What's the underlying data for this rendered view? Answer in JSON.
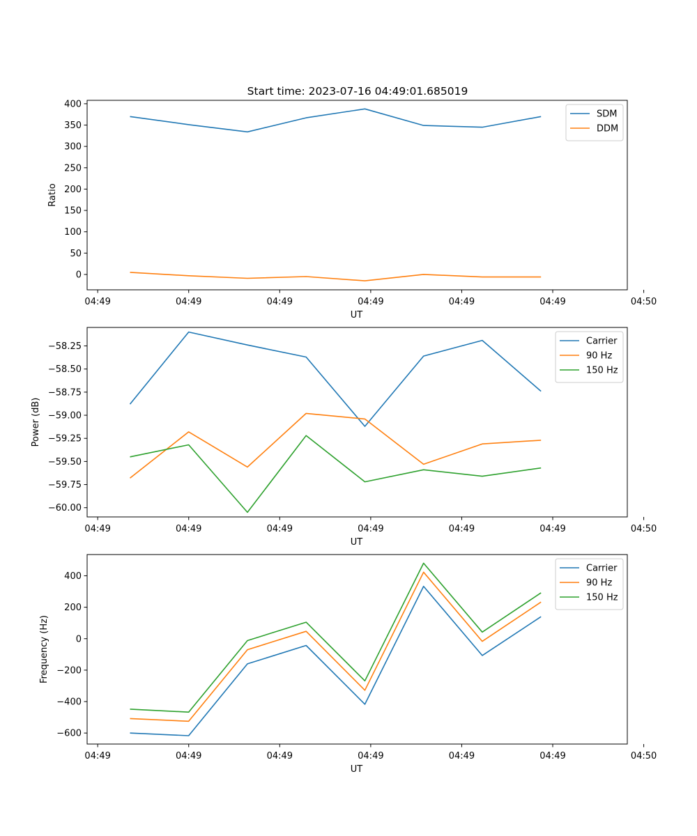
{
  "figure": {
    "title": "Start time: 2023-07-16 04:49:01.685019"
  },
  "chart_data": [
    {
      "type": "line",
      "title": "Start time: 2023-07-16 04:49:01.685019",
      "xlabel": "UT",
      "ylabel": "Ratio",
      "x_tick_labels": [
        "04:49",
        "04:49",
        "04:49",
        "04:49",
        "04:49",
        "04:49",
        "04:50"
      ],
      "y_ticks": [
        0,
        50,
        100,
        150,
        200,
        250,
        300,
        350,
        400
      ],
      "y_tick_labels": [
        "0",
        "50",
        "100",
        "150",
        "200",
        "250",
        "300",
        "350",
        "400"
      ],
      "ylim": [
        -36,
        408
      ],
      "x": [
        1,
        2,
        3,
        4,
        5,
        6,
        7,
        8
      ],
      "xlim": [
        0.27,
        9.47
      ],
      "x_tick_positions": [
        0.45,
        2.0,
        3.55,
        5.1,
        6.65,
        8.2,
        9.75
      ],
      "legend_position": "top-right",
      "series": [
        {
          "name": "SDM",
          "color": "#1f77b4",
          "values": [
            370,
            351,
            334,
            367,
            388,
            349,
            345,
            370
          ]
        },
        {
          "name": "DDM",
          "color": "#ff7f0e",
          "values": [
            5,
            -3,
            -9,
            -5,
            -15,
            0,
            -6,
            -6
          ]
        }
      ]
    },
    {
      "type": "line",
      "title": "",
      "xlabel": "UT",
      "ylabel": "Power (dB)",
      "x_tick_labels": [
        "04:49",
        "04:49",
        "04:49",
        "04:49",
        "04:49",
        "04:49",
        "04:50"
      ],
      "y_ticks": [
        -60.0,
        -59.75,
        -59.5,
        -59.25,
        -59.0,
        -58.75,
        -58.5,
        -58.25
      ],
      "y_tick_labels": [
        "−60.00",
        "−59.75",
        "−59.50",
        "−59.25",
        "−59.00",
        "−58.75",
        "−58.50",
        "−58.25"
      ],
      "ylim": [
        -60.1,
        -58.05
      ],
      "x": [
        1,
        2,
        3,
        4,
        5,
        6,
        7,
        8
      ],
      "xlim": [
        0.27,
        9.47
      ],
      "x_tick_positions": [
        0.45,
        2.0,
        3.55,
        5.1,
        6.65,
        8.2,
        9.75
      ],
      "legend_position": "top-right",
      "series": [
        {
          "name": "Carrier",
          "color": "#1f77b4",
          "values": [
            -58.88,
            -58.1,
            -58.24,
            -58.37,
            -59.12,
            -58.36,
            -58.19,
            -58.74
          ]
        },
        {
          "name": "90 Hz",
          "color": "#ff7f0e",
          "values": [
            -59.68,
            -59.18,
            -59.56,
            -58.98,
            -59.04,
            -59.53,
            -59.31,
            -59.27
          ]
        },
        {
          "name": "150 Hz",
          "color": "#2ca02c",
          "values": [
            -59.45,
            -59.32,
            -60.05,
            -59.22,
            -59.72,
            -59.59,
            -59.66,
            -59.57
          ]
        }
      ]
    },
    {
      "type": "line",
      "title": "",
      "xlabel": "UT",
      "ylabel": "Frequency (Hz)",
      "x_tick_labels": [
        "04:49",
        "04:49",
        "04:49",
        "04:49",
        "04:49",
        "04:49",
        "04:50"
      ],
      "y_ticks": [
        -600,
        -400,
        -200,
        0,
        200,
        400
      ],
      "y_tick_labels": [
        "−600",
        "−400",
        "−200",
        "0",
        "200",
        "400"
      ],
      "ylim": [
        -670,
        535
      ],
      "x": [
        1,
        2,
        3,
        4,
        5,
        6,
        7,
        8
      ],
      "xlim": [
        0.27,
        9.47
      ],
      "x_tick_positions": [
        0.45,
        2.0,
        3.55,
        5.1,
        6.65,
        8.2,
        9.75
      ],
      "legend_position": "top-right",
      "series": [
        {
          "name": "Carrier",
          "color": "#1f77b4",
          "values": [
            -600,
            -617,
            -160,
            -43,
            -417,
            333,
            -107,
            140
          ]
        },
        {
          "name": "90 Hz",
          "color": "#ff7f0e",
          "values": [
            -508,
            -525,
            -70,
            47,
            -328,
            423,
            -17,
            233
          ]
        },
        {
          "name": "150 Hz",
          "color": "#2ca02c",
          "values": [
            -448,
            -467,
            -12,
            105,
            -268,
            480,
            42,
            292
          ]
        }
      ]
    }
  ]
}
